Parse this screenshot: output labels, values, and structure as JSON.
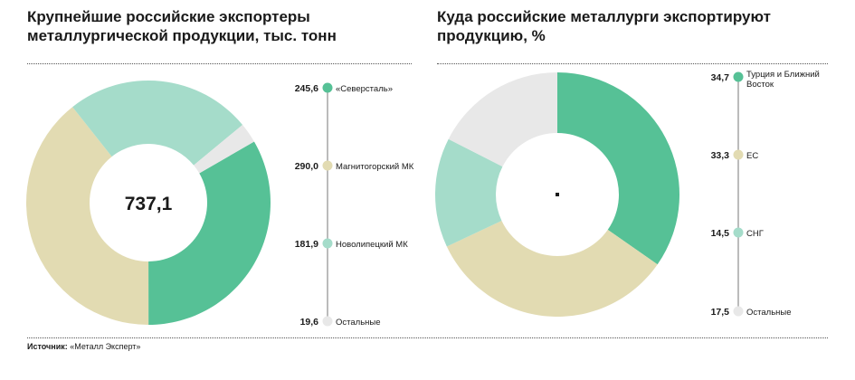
{
  "source": {
    "label": "Источник:",
    "text": "«Металл Эксперт»"
  },
  "chart_data": [
    {
      "type": "pie",
      "donut": true,
      "title_lines": [
        "Крупнейшие российские экспортеры",
        "металлургической продукции, тыс. тонн"
      ],
      "center_label": "737,1",
      "slices": [
        {
          "label": "«Северсталь»",
          "value": 245.6,
          "value_label": "245,6",
          "color": "#56c196"
        },
        {
          "label": "Магнитогорский МК",
          "value": 290.0,
          "value_label": "290,0",
          "color": "#e2dbb2"
        },
        {
          "label": "Новолипецкий МК",
          "value": 181.9,
          "value_label": "181,9",
          "color": "#a5dcca"
        },
        {
          "label": "Остальные",
          "value": 19.6,
          "value_label": "19,6",
          "color": "#e8e8e8"
        }
      ]
    },
    {
      "type": "pie",
      "donut": true,
      "title_lines": [
        "Куда российские металлурги экспортируют",
        "продукцию, %"
      ],
      "center_label": "",
      "slices": [
        {
          "label": "Турция и Ближний Восток",
          "label_lines": [
            "Турция и Ближний",
            "Восток"
          ],
          "value": 34.7,
          "value_label": "34,7",
          "color": "#56c196"
        },
        {
          "label": "ЕС",
          "value": 33.3,
          "value_label": "33,3",
          "color": "#e2dbb2"
        },
        {
          "label": "СНГ",
          "value": 14.5,
          "value_label": "14,5",
          "color": "#a5dcca"
        },
        {
          "label": "Остальные",
          "value": 17.5,
          "value_label": "17,5",
          "color": "#e8e8e8"
        }
      ]
    }
  ]
}
